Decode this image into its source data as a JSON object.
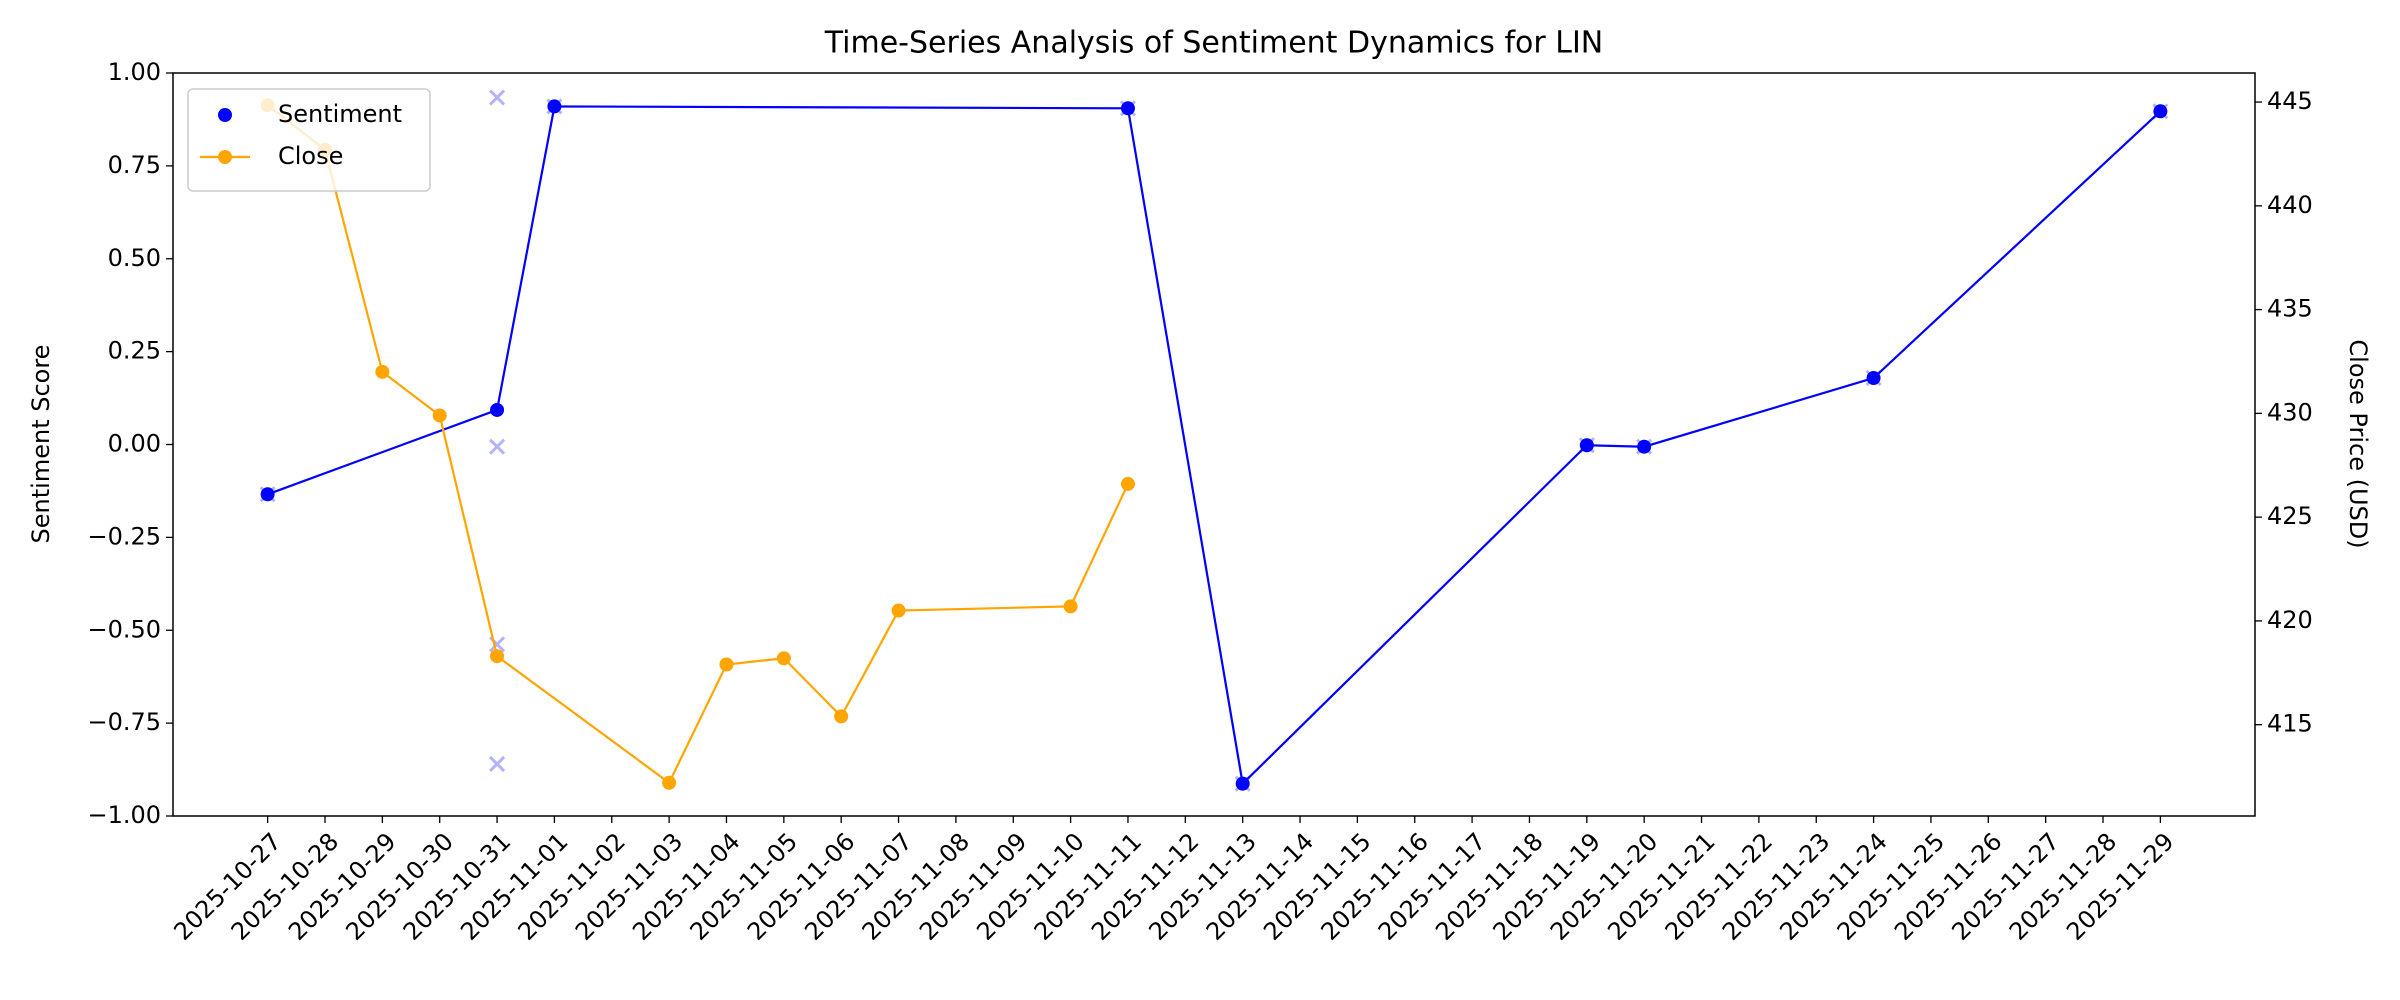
{
  "chart_data": {
    "type": "line",
    "title": "Time-Series Analysis of Sentiment Dynamics for LIN",
    "y_label": "Sentiment Score",
    "y2_label": "Close Price (USD)",
    "xlim": [
      "2025-10-27",
      "2025-11-29"
    ],
    "xticks": [
      "2025-10-27",
      "2025-10-28",
      "2025-10-29",
      "2025-10-30",
      "2025-10-31",
      "2025-11-01",
      "2025-11-02",
      "2025-11-03",
      "2025-11-04",
      "2025-11-05",
      "2025-11-06",
      "2025-11-07",
      "2025-11-08",
      "2025-11-09",
      "2025-11-10",
      "2025-11-11",
      "2025-11-12",
      "2025-11-13",
      "2025-11-14",
      "2025-11-15",
      "2025-11-16",
      "2025-11-17",
      "2025-11-18",
      "2025-11-19",
      "2025-11-20",
      "2025-11-21",
      "2025-11-22",
      "2025-11-23",
      "2025-11-24",
      "2025-11-25",
      "2025-11-26",
      "2025-11-27",
      "2025-11-28",
      "2025-11-29"
    ],
    "ylim": [
      -1,
      1
    ],
    "yticks": [
      {
        "value": -1,
        "label": "−1.00"
      },
      {
        "value": -0.75,
        "label": "−0.75"
      },
      {
        "value": -0.5,
        "label": "−0.50"
      },
      {
        "value": -0.25,
        "label": "−0.25"
      },
      {
        "value": 0,
        "label": "0.00"
      },
      {
        "value": 0.25,
        "label": "0.25"
      },
      {
        "value": 0.5,
        "label": "0.50"
      },
      {
        "value": 0.75,
        "label": "0.75"
      },
      {
        "value": 1,
        "label": "1.00"
      }
    ],
    "y2lim": [
      410.6,
      446.4
    ],
    "y2ticks": [
      415,
      420,
      425,
      430,
      435,
      440,
      445
    ],
    "legend": "upper left",
    "series": [
      {
        "name": "Sentiment",
        "color": "#0000ff",
        "marker": "circle",
        "x": [
          "2025-10-27",
          "2025-10-31",
          "2025-11-01",
          "2025-11-11",
          "2025-11-13",
          "2025-11-19",
          "2025-11-20",
          "2025-11-24",
          "2025-11-29"
        ],
        "values": [
          -0.134,
          0.093,
          0.91,
          0.905,
          -0.913,
          -0.002,
          -0.006,
          0.179,
          0.897
        ]
      },
      {
        "name": "Close",
        "color": "#ffa500",
        "marker": "circle",
        "axis": "y2",
        "x": [
          "2025-10-27",
          "2025-10-28",
          "2025-10-29",
          "2025-10-30",
          "2025-10-31",
          "2025-11-03",
          "2025-11-04",
          "2025-11-05",
          "2025-11-06",
          "2025-11-07",
          "2025-11-10",
          "2025-11-11"
        ],
        "values": [
          444.85,
          442.7,
          432.0,
          429.9,
          418.3,
          412.2,
          417.9,
          418.2,
          415.4,
          420.5,
          420.7,
          426.6
        ]
      },
      {
        "color": "#8080ff",
        "marker": "x",
        "x": [
          "2025-10-27",
          "2025-10-31",
          "2025-10-31",
          "2025-10-31",
          "2025-10-31",
          "2025-11-01",
          "2025-11-11",
          "2025-11-13",
          "2025-11-19",
          "2025-11-20",
          "2025-11-24",
          "2025-11-29"
        ],
        "values": [
          -0.134,
          0.934,
          -0.006,
          -0.538,
          -0.86,
          0.91,
          0.905,
          -0.913,
          -0.002,
          -0.006,
          0.179,
          0.897
        ]
      }
    ]
  }
}
